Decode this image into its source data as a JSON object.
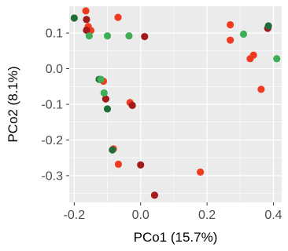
{
  "chart_data": {
    "type": "scatter",
    "title": "",
    "xlabel": "PCo1 (15.7%)",
    "ylabel": "PCo2 (8.1%)",
    "xlim": [
      -0.215,
      0.425
    ],
    "ylim": [
      -0.375,
      0.175
    ],
    "xticks": [
      -0.2,
      0.0,
      0.2,
      0.4
    ],
    "xtick_labels": [
      "-0.2",
      "0.0",
      "0.2",
      "0.4"
    ],
    "yticks": [
      0.1,
      0.0,
      -0.1,
      -0.2,
      -0.3
    ],
    "ytick_labels": [
      "0.1",
      "0.0",
      "-0.1",
      "-0.2",
      "-0.3"
    ],
    "grid": true,
    "panel_background": "#ebebeb",
    "grid_color": "#ffffff",
    "legend": "none",
    "series": [
      {
        "color": "#f03b20",
        "points": [
          [
            -0.165,
            0.162
          ],
          [
            -0.158,
            0.118
          ],
          [
            -0.15,
            0.107
          ],
          [
            -0.068,
            0.144
          ],
          [
            -0.112,
            -0.035
          ],
          [
            -0.032,
            -0.095
          ],
          [
            -0.082,
            -0.225
          ],
          [
            -0.067,
            -0.268
          ],
          [
            0.18,
            -0.29
          ],
          [
            0.27,
            0.123
          ],
          [
            0.27,
            0.08
          ],
          [
            0.34,
            0.038
          ],
          [
            0.33,
            0.028
          ],
          [
            0.363,
            -0.058
          ]
        ]
      },
      {
        "color": "#a31a1a",
        "points": [
          [
            -0.163,
            0.138
          ],
          [
            -0.163,
            0.108
          ],
          [
            0.012,
            0.09
          ],
          [
            -0.105,
            -0.085
          ],
          [
            -0.025,
            -0.103
          ],
          [
            0.0,
            -0.27
          ],
          [
            0.042,
            -0.355
          ],
          [
            0.383,
            0.113
          ]
        ]
      },
      {
        "color": "#1f6e3a",
        "points": [
          [
            -0.2,
            0.142
          ],
          [
            -0.125,
            -0.03
          ],
          [
            -0.1,
            -0.113
          ],
          [
            0.385,
            0.12
          ],
          [
            -0.085,
            -0.228
          ]
        ]
      },
      {
        "color": "#3fae57",
        "points": [
          [
            -0.155,
            0.092
          ],
          [
            -0.1,
            0.092
          ],
          [
            -0.035,
            0.092
          ],
          [
            0.31,
            0.097
          ],
          [
            0.41,
            0.028
          ],
          [
            -0.12,
            -0.03
          ],
          [
            -0.11,
            -0.068
          ]
        ]
      }
    ]
  }
}
